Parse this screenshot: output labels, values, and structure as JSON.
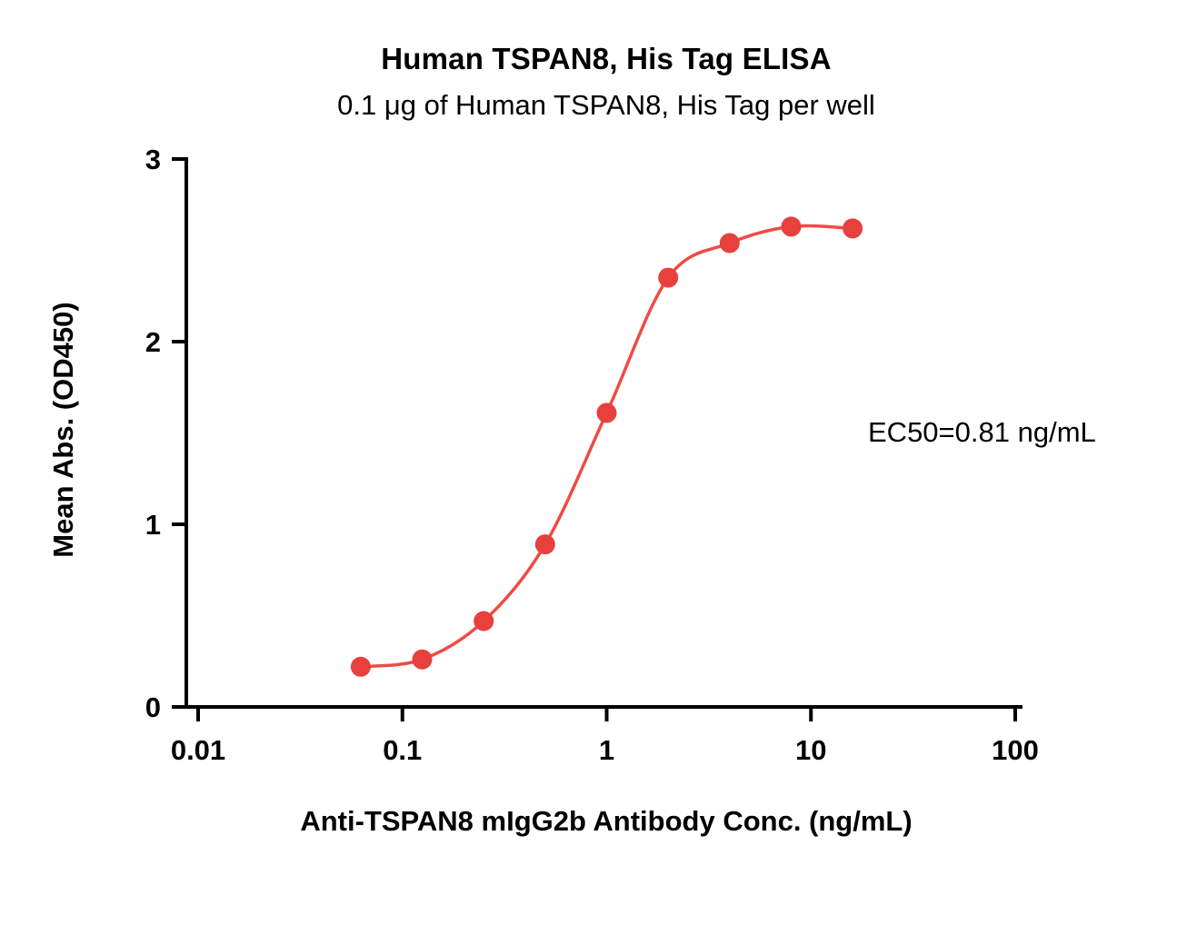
{
  "chart_data": {
    "type": "scatter",
    "title": "Human TSPAN8, His Tag ELISA",
    "subtitle": "0.1 μg of Human TSPAN8, His Tag per well",
    "xlabel": "Anti-TSPAN8 mIgG2b Antibody Conc. (ng/mL)",
    "ylabel": "Mean Abs. (OD450)",
    "ec50_label": "EC50=0.81 ng/mL",
    "x_scale": "log",
    "xlim": [
      0.01,
      100
    ],
    "ylim": [
      0,
      3
    ],
    "x_ticks": [
      0.01,
      0.1,
      1,
      10,
      100
    ],
    "x_tick_labels": [
      "0.01",
      "0.1",
      "1",
      "10",
      "100"
    ],
    "y_ticks": [
      0,
      1,
      2,
      3
    ],
    "y_tick_labels": [
      "0",
      "1",
      "2",
      "3"
    ],
    "x": [
      0.0625,
      0.125,
      0.25,
      0.5,
      1,
      2,
      4,
      8,
      16
    ],
    "y": [
      0.22,
      0.26,
      0.47,
      0.89,
      1.61,
      2.35,
      2.54,
      2.63,
      2.62
    ],
    "grid": false,
    "legend": "none",
    "point_color": "#E8403C",
    "curve_color": "#EF4B44",
    "axis_color": "#000000"
  }
}
